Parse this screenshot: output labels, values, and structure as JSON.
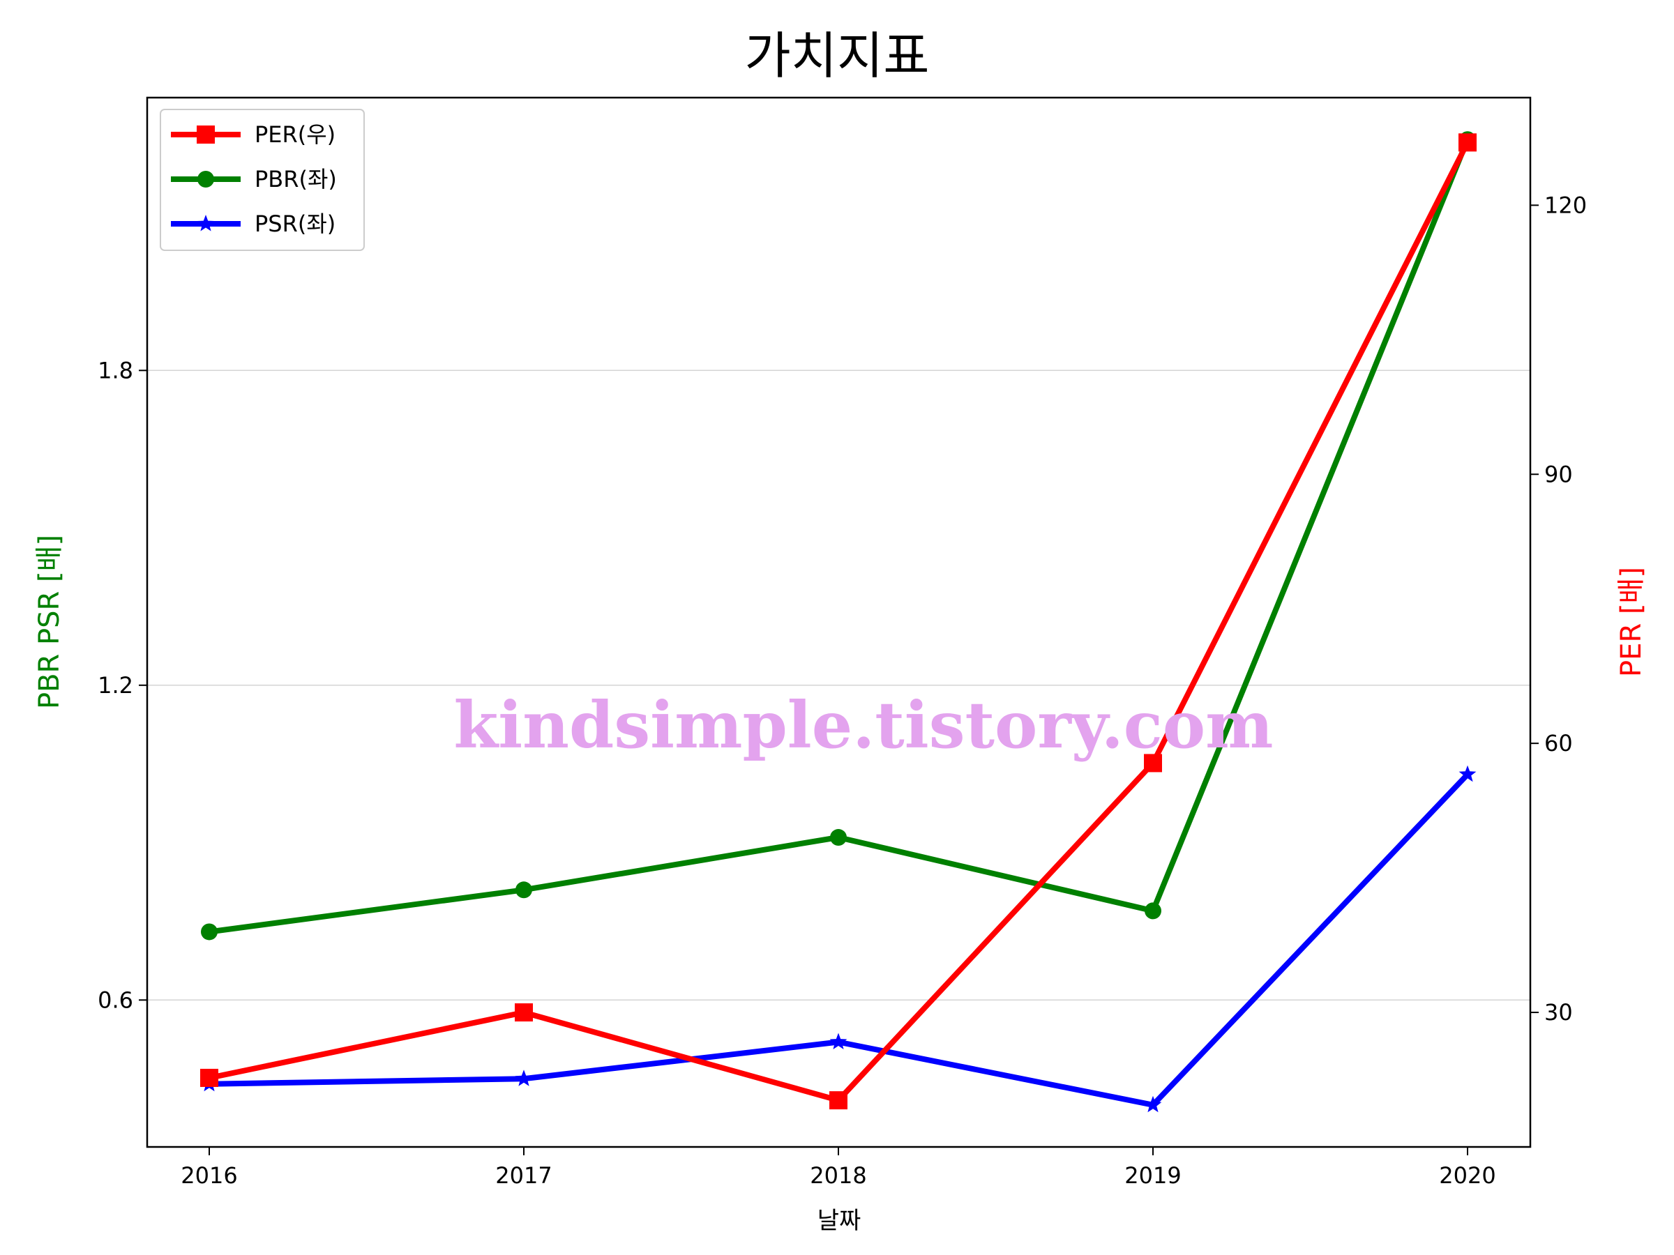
{
  "chart_data": {
    "type": "line",
    "title": "가치지표",
    "xlabel": "날짜",
    "ylabel_left": "PBR PSR [배]",
    "ylabel_right": "PER [배]",
    "categories": [
      "2016",
      "2017",
      "2018",
      "2019",
      "2020"
    ],
    "left_axis": {
      "ylim": [
        0.32,
        2.32
      ],
      "ticks": [
        "0.6",
        "1.2",
        "1.8"
      ],
      "tick_values": [
        0.6,
        1.2,
        1.8
      ]
    },
    "right_axis": {
      "ylim": [
        15,
        132
      ],
      "ticks": [
        "30",
        "60",
        "90",
        "120"
      ],
      "tick_values": [
        30,
        60,
        90,
        120
      ]
    },
    "grid": "horizontal (left axis)",
    "legend_position": "upper-left",
    "series": [
      {
        "name": "PER(우)",
        "axis": "right",
        "color": "#ff0000",
        "marker": "square",
        "values": [
          22.7,
          30.0,
          20.2,
          57.8,
          127.0
        ]
      },
      {
        "name": "PBR(좌)",
        "axis": "left",
        "color": "#008000",
        "marker": "circle",
        "values": [
          0.73,
          0.81,
          0.91,
          0.77,
          2.24
        ]
      },
      {
        "name": "PSR(좌)",
        "axis": "left",
        "color": "#0000ff",
        "marker": "star",
        "values": [
          0.44,
          0.45,
          0.52,
          0.4,
          1.03
        ]
      }
    ],
    "watermark": "kindsimple.tistory.com"
  }
}
